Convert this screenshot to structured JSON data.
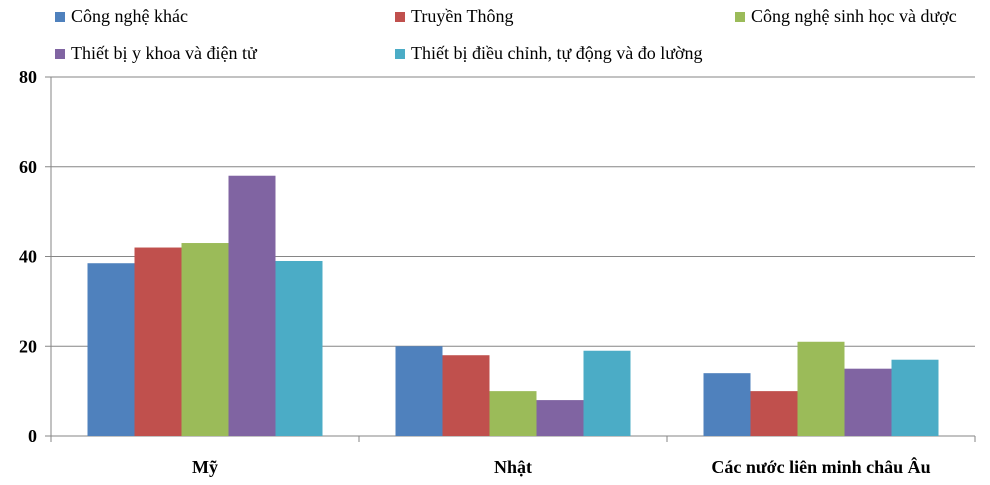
{
  "chart_data": {
    "type": "bar",
    "categories": [
      "Mỹ",
      "Nhật",
      "Các nước liên minh châu Âu"
    ],
    "series": [
      {
        "name": "Công nghệ khác",
        "color": "#4f81bd",
        "values": [
          38.5,
          20,
          14
        ]
      },
      {
        "name": "Truyền Thông",
        "color": "#c0504d",
        "values": [
          42,
          18,
          10
        ]
      },
      {
        "name": "Công nghệ sinh học và dược",
        "color": "#9bbb59",
        "values": [
          43,
          10,
          21
        ]
      },
      {
        "name": "Thiết bị y khoa và điện tử",
        "color": "#8064a2",
        "values": [
          58,
          8,
          15
        ]
      },
      {
        "name": "Thiết bị điều chỉnh, tự động và đo lường",
        "color": "#4bacc6",
        "values": [
          39,
          19,
          17
        ]
      }
    ],
    "ylim": [
      0,
      80
    ],
    "yticks": [
      "0",
      "20",
      "40",
      "60",
      "80"
    ],
    "grid": true,
    "legend_position": "top",
    "title": "",
    "xlabel": "",
    "ylabel": ""
  }
}
